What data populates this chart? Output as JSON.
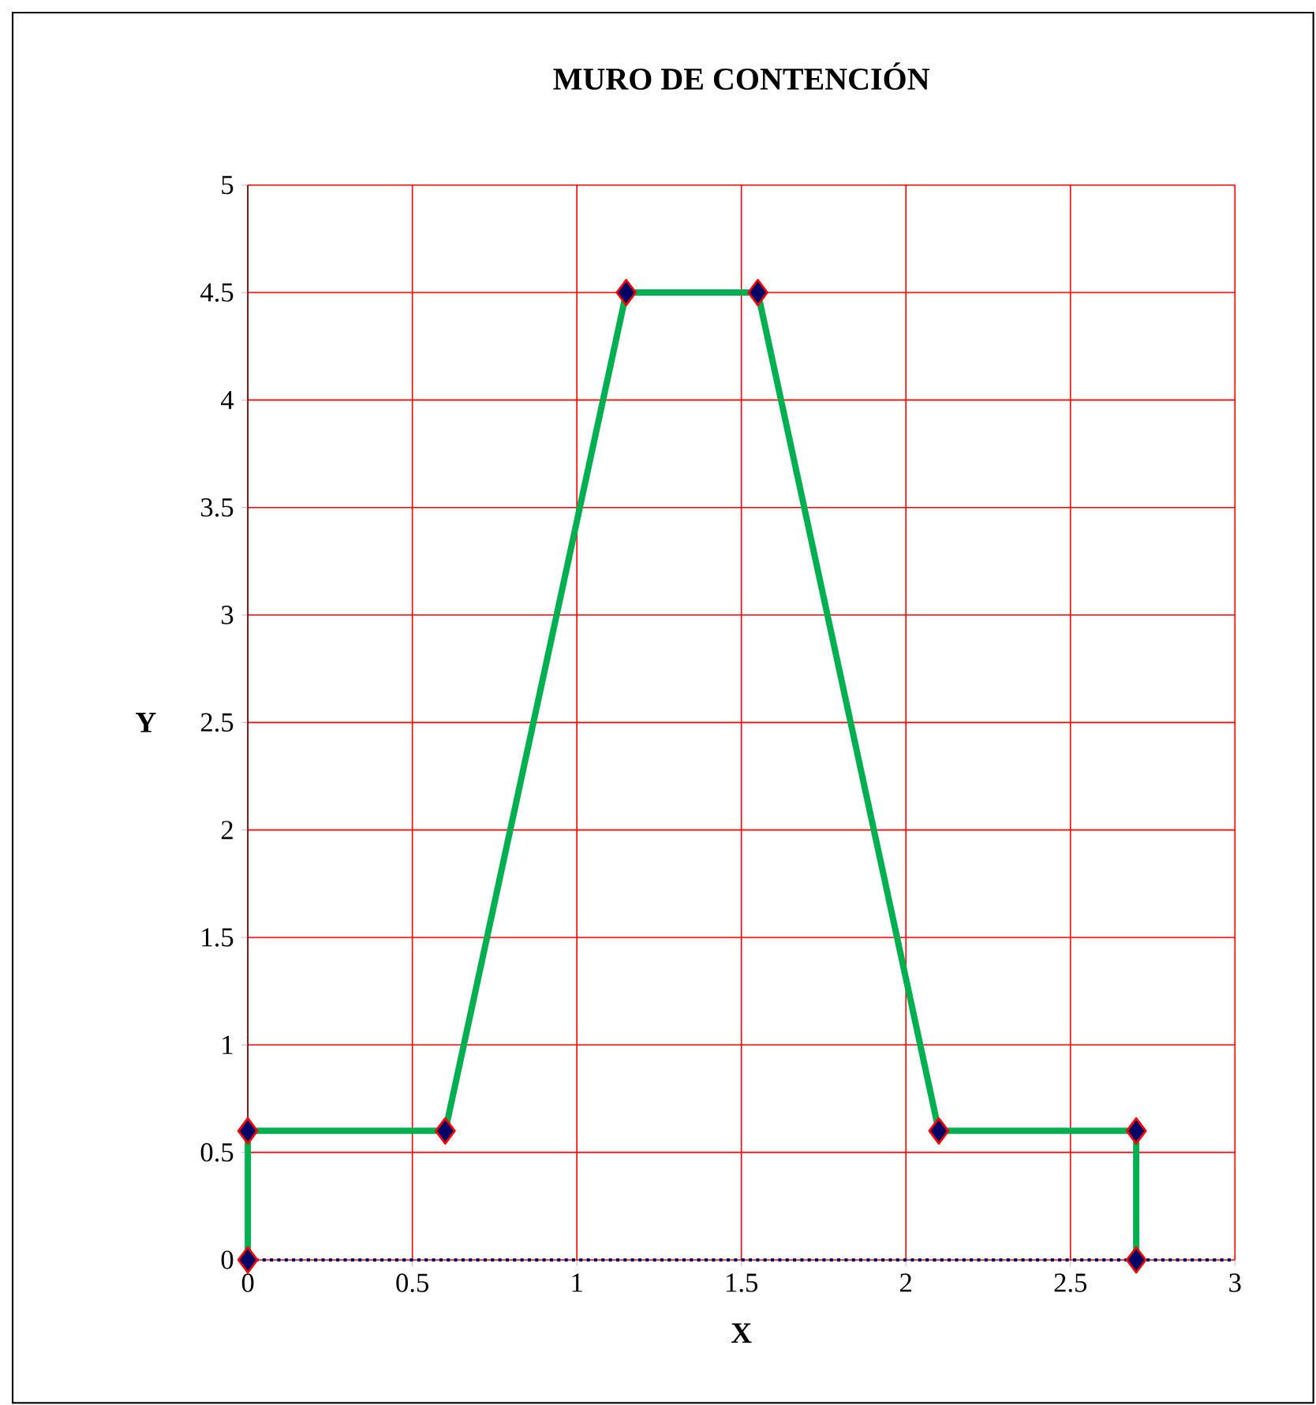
{
  "chart_data": {
    "type": "line",
    "title": "MURO DE CONTENCIÓN",
    "xlabel": "X",
    "ylabel": "Y",
    "x": [
      0,
      0,
      0.6,
      1.15,
      1.55,
      2.1,
      2.7,
      2.7
    ],
    "series": [
      {
        "color": "#00b050",
        "values": [
          0,
          0.6,
          0.6,
          4.5,
          4.5,
          0.6,
          0.6,
          0
        ]
      }
    ],
    "xlim": [
      0,
      3
    ],
    "xticks": [
      0,
      0.5,
      1,
      1.5,
      2,
      2.5,
      3
    ],
    "ylim": [
      0,
      5
    ],
    "yticks": [
      0,
      0.5,
      1,
      1.5,
      2,
      2.5,
      3,
      3.5,
      4,
      4.5,
      5
    ],
    "grid": true,
    "marker": "diamond",
    "line_style": "solid"
  }
}
